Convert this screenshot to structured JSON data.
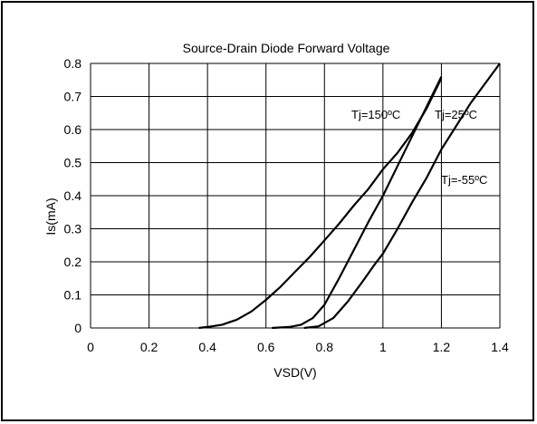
{
  "chart_data": {
    "type": "line",
    "title": "Source-Drain Diode Forward Voltage",
    "xlabel": "VSD(V)",
    "ylabel": "Is(mA)",
    "xlim": [
      0,
      1.4
    ],
    "ylim": [
      0,
      0.8
    ],
    "x_ticks": [
      "0",
      "0.2",
      "0.4",
      "0.6",
      "0.8",
      "1",
      "1.2",
      "1.4"
    ],
    "y_ticks": [
      "0",
      "0.1",
      "0.2",
      "0.3",
      "0.4",
      "0.5",
      "0.6",
      "0.7",
      "0.8"
    ],
    "grid": true,
    "series": [
      {
        "name": "Tj=150ºC",
        "points": [
          [
            0.37,
            0
          ],
          [
            0.4,
            0.003
          ],
          [
            0.45,
            0.01
          ],
          [
            0.5,
            0.025
          ],
          [
            0.55,
            0.05
          ],
          [
            0.6,
            0.085
          ],
          [
            0.65,
            0.125
          ],
          [
            0.7,
            0.17
          ],
          [
            0.75,
            0.215
          ],
          [
            0.8,
            0.265
          ],
          [
            0.85,
            0.315
          ],
          [
            0.9,
            0.37
          ],
          [
            0.95,
            0.42
          ],
          [
            1.0,
            0.48
          ],
          [
            1.05,
            0.53
          ],
          [
            1.1,
            0.59
          ],
          [
            1.15,
            0.665
          ],
          [
            1.2,
            0.755
          ]
        ]
      },
      {
        "name": "Tj=25ºC",
        "points": [
          [
            0.62,
            0
          ],
          [
            0.68,
            0.003
          ],
          [
            0.72,
            0.01
          ],
          [
            0.76,
            0.03
          ],
          [
            0.8,
            0.07
          ],
          [
            0.85,
            0.15
          ],
          [
            0.9,
            0.235
          ],
          [
            0.95,
            0.32
          ],
          [
            1.0,
            0.4
          ],
          [
            1.05,
            0.49
          ],
          [
            1.1,
            0.58
          ],
          [
            1.15,
            0.67
          ],
          [
            1.2,
            0.76
          ]
        ]
      },
      {
        "name": "Tj=-55ºC",
        "points": [
          [
            0.73,
            0
          ],
          [
            0.78,
            0.005
          ],
          [
            0.83,
            0.03
          ],
          [
            0.88,
            0.08
          ],
          [
            0.93,
            0.14
          ],
          [
            0.97,
            0.19
          ],
          [
            1.0,
            0.225
          ],
          [
            1.05,
            0.3
          ],
          [
            1.1,
            0.38
          ],
          [
            1.15,
            0.455
          ],
          [
            1.2,
            0.54
          ],
          [
            1.25,
            0.61
          ],
          [
            1.3,
            0.68
          ],
          [
            1.35,
            0.74
          ],
          [
            1.4,
            0.8
          ]
        ]
      }
    ],
    "annotations": [
      "Tj=150ºC",
      "Tj=25ºC",
      "Tj=-55ºC"
    ]
  }
}
